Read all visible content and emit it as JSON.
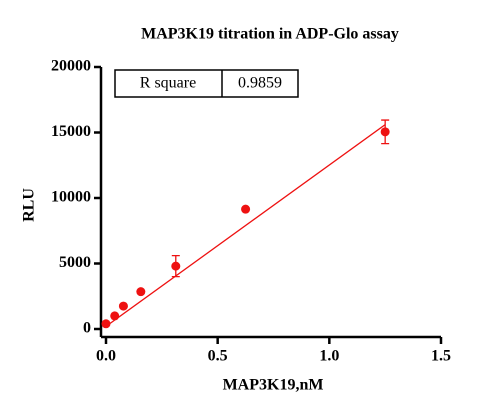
{
  "chart_data": {
    "type": "scatter",
    "title": "MAP3K19 titration in ADP-Glo assay",
    "x_label": "MAP3K19,nM",
    "y_label": "RLU",
    "xlim": [
      0,
      1.5
    ],
    "ylim": [
      0,
      20000
    ],
    "xticks": [
      {
        "value": 0,
        "label": "0.0"
      },
      0.5,
      {
        "value": 1,
        "label": "1.0"
      },
      1.5
    ],
    "yticks": [
      0,
      5000,
      10000,
      15000,
      20000
    ],
    "series": [
      {
        "color": "#ee1111",
        "x": [
          0,
          0.039,
          0.078,
          0.156,
          0.3125,
          0.625,
          1.25
        ],
        "values": [
          400,
          1000,
          1750,
          2850,
          4800,
          9150,
          15050
        ],
        "errors": [
          null,
          null,
          null,
          null,
          800,
          null,
          900
        ]
      },
      {
        "type": "line",
        "color": "#ee1111",
        "x": [
          0,
          1.25
        ],
        "values": [
          200,
          15600
        ]
      }
    ],
    "annotation": {
      "label": "R square",
      "value": 0.9859
    }
  }
}
